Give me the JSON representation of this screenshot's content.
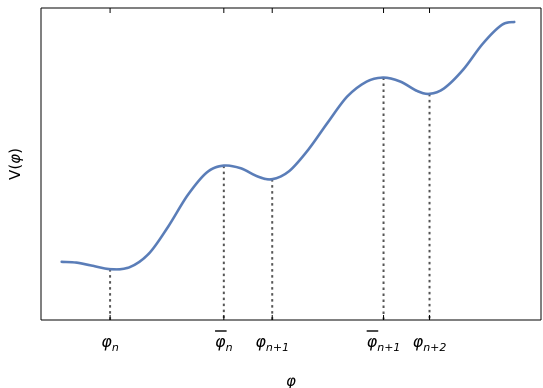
{
  "chart_data": {
    "type": "line",
    "xlabel": "φ",
    "ylabel_prefix": "V(",
    "ylabel_var": "φ",
    "ylabel_suffix": ")",
    "xlim": [
      0,
      10
    ],
    "ylim": [
      0,
      10
    ],
    "grid": false,
    "series": [
      {
        "values": [
          [
            0.2,
            1.15
          ],
          [
            0.5,
            1.12
          ],
          [
            0.8,
            1.02
          ],
          [
            1.2,
            0.88
          ],
          [
            1.6,
            0.95
          ],
          [
            2.0,
            1.45
          ],
          [
            2.4,
            2.45
          ],
          [
            2.8,
            3.6
          ],
          [
            3.2,
            4.45
          ],
          [
            3.55,
            4.7
          ],
          [
            3.9,
            4.6
          ],
          [
            4.25,
            4.3
          ],
          [
            4.55,
            4.2
          ],
          [
            4.9,
            4.5
          ],
          [
            5.3,
            5.3
          ],
          [
            5.7,
            6.3
          ],
          [
            6.1,
            7.25
          ],
          [
            6.5,
            7.8
          ],
          [
            6.85,
            7.95
          ],
          [
            7.2,
            7.8
          ],
          [
            7.55,
            7.45
          ],
          [
            7.8,
            7.35
          ],
          [
            8.1,
            7.55
          ],
          [
            8.5,
            8.25
          ],
          [
            8.9,
            9.2
          ],
          [
            9.3,
            9.9
          ],
          [
            9.55,
            10.0
          ]
        ],
        "color": "#5a7db8"
      }
    ],
    "markers": [
      {
        "x": 1.2,
        "y": 0.88,
        "base": "φ",
        "sub": "n",
        "bar": false
      },
      {
        "x": 3.55,
        "y": 4.7,
        "base": "φ",
        "sub": "n",
        "bar": true
      },
      {
        "x": 4.55,
        "y": 4.2,
        "base": "φ",
        "sub": "n+1",
        "bar": false
      },
      {
        "x": 6.85,
        "y": 7.95,
        "base": "φ",
        "sub": "n+1",
        "bar": true
      },
      {
        "x": 7.8,
        "y": 7.35,
        "base": "φ",
        "sub": "n+2",
        "bar": false
      }
    ]
  }
}
